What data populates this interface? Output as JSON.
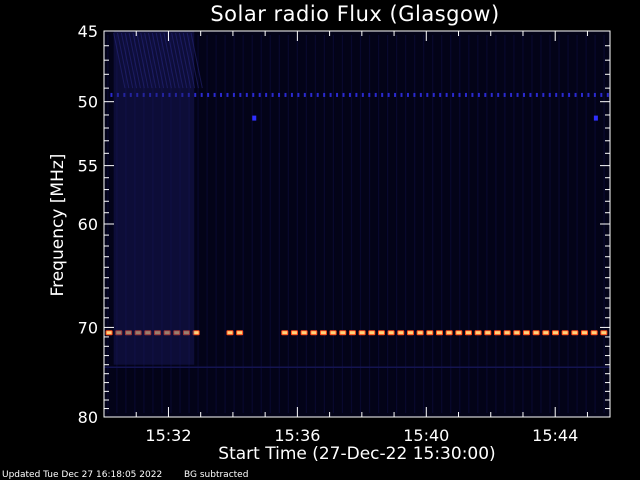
{
  "chart_data": {
    "type": "heatmap",
    "title": "Solar radio Flux (Glasgow)",
    "xlabel": "Start Time (27-Dec-22 15:30:00)",
    "ylabel": "Frequency [MHz]",
    "x_range_minutes": [
      0,
      15.7
    ],
    "x_ticks": [
      {
        "minute": 2,
        "label": "15:32"
      },
      {
        "minute": 6,
        "label": "15:36"
      },
      {
        "minute": 10,
        "label": "15:40"
      },
      {
        "minute": 14,
        "label": "15:44"
      }
    ],
    "y_range_mhz": [
      45,
      80
    ],
    "y_ticks": [
      {
        "mhz": 45,
        "label": "45"
      },
      {
        "mhz": 50,
        "label": "50"
      },
      {
        "mhz": 55,
        "label": "55"
      },
      {
        "mhz": 60,
        "label": "60"
      },
      {
        "mhz": 70,
        "label": "70"
      },
      {
        "mhz": 80,
        "label": "80"
      }
    ],
    "features": [
      {
        "name": "interference line",
        "mhz": 49.5,
        "color": "#2a2ad0",
        "start_minute": 0.2,
        "end_minute": 15.6
      },
      {
        "name": "interference line",
        "mhz": 70.5,
        "color": "#ff4a1a",
        "segments": [
          [
            0.05,
            2.8
          ],
          [
            3.8,
            4.3
          ],
          [
            5.5,
            15.6
          ]
        ]
      },
      {
        "name": "broadband emission",
        "mhz_range": [
          45,
          74
        ],
        "minute_range": [
          0.3,
          2.8
        ],
        "color": "#1a1a60"
      }
    ],
    "background": "#030318",
    "grid": false
  },
  "footer": {
    "updated": "Updated Tue Dec 27 16:18:05 2022",
    "note": "BG subtracted"
  }
}
